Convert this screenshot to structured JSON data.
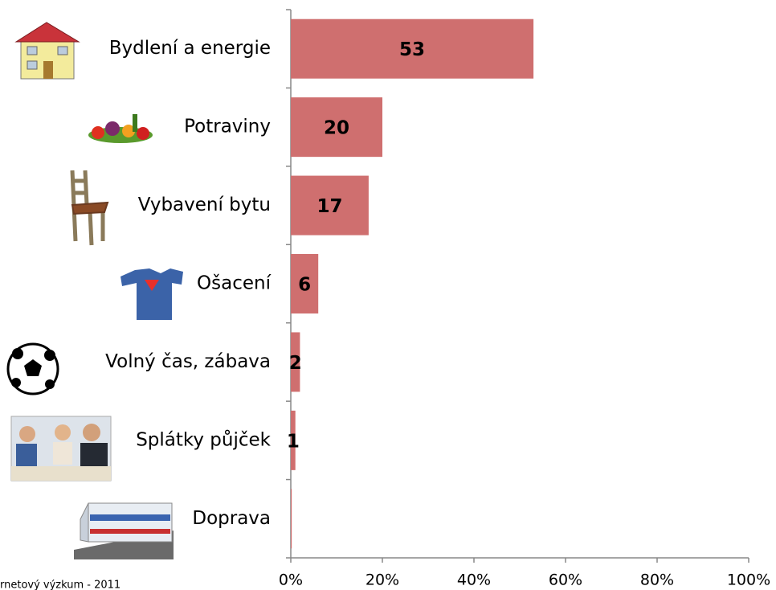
{
  "chart_data": {
    "type": "hbar",
    "categories": [
      "Bydlení a energie",
      "Potraviny",
      "Vybavení bytu",
      "Ošacení",
      "Volný čas, zábava",
      "Splátky půjček",
      "Doprava"
    ],
    "values": [
      53,
      20,
      17,
      6,
      2,
      1,
      0.2
    ],
    "value_labels": [
      "53",
      "20",
      "17",
      "6",
      "2",
      "1",
      null
    ],
    "color": "#cf6f6f",
    "xlim": [
      0,
      100
    ],
    "xticks": [
      {
        "value": 0,
        "label": "0%"
      },
      {
        "value": 20,
        "label": "20%"
      },
      {
        "value": 40,
        "label": "40%"
      },
      {
        "value": 60,
        "label": "60%"
      },
      {
        "value": 80,
        "label": "80%"
      },
      {
        "value": 100,
        "label": "100%"
      }
    ],
    "source": "rnetový výzkum - 2011"
  }
}
